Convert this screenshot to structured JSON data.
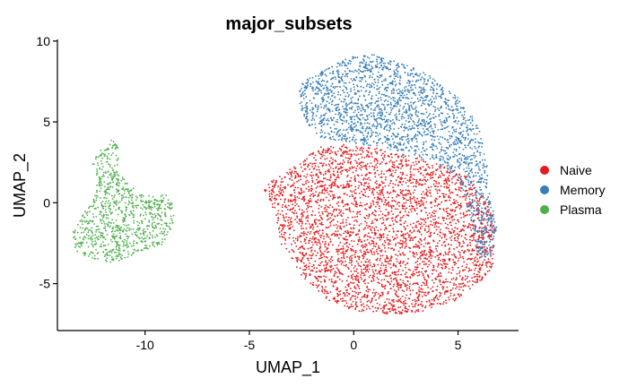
{
  "chart_data": {
    "type": "scatter",
    "title": "major_subsets",
    "xlabel": "UMAP_1",
    "ylabel": "UMAP_2",
    "xlim": [
      -14.2,
      7.9
    ],
    "ylim": [
      -7.9,
      10.1
    ],
    "xticks": [
      -10,
      -5,
      0,
      5
    ],
    "xtick_labels": [
      "-10",
      "-5",
      "0",
      "5"
    ],
    "yticks": [
      -5,
      0,
      5,
      10
    ],
    "ytick_labels": [
      "-5",
      "0",
      "5",
      "10"
    ],
    "grid": false,
    "legend_position": "right",
    "series": [
      {
        "name": "Naive",
        "color": "#E41A1C",
        "region": {
          "outline": [
            [
              -3.8,
              -0.5
            ],
            [
              -4.3,
              0.8
            ],
            [
              -3.9,
              1.5
            ],
            [
              -2.5,
              2.5
            ],
            [
              -1.8,
              3.4
            ],
            [
              -0.5,
              3.6
            ],
            [
              1.0,
              3.4
            ],
            [
              3.0,
              2.8
            ],
            [
              4.5,
              2.2
            ],
            [
              5.5,
              1.6
            ],
            [
              6.5,
              0.0
            ],
            [
              6.8,
              -2.0
            ],
            [
              6.7,
              -4.0
            ],
            [
              6.0,
              -5.0
            ],
            [
              5.0,
              -6.0
            ],
            [
              3.5,
              -6.7
            ],
            [
              2.0,
              -6.9
            ],
            [
              0.5,
              -6.8
            ],
            [
              -1.0,
              -6.3
            ],
            [
              -2.5,
              -4.5
            ],
            [
              -3.5,
              -2.5
            ]
          ]
        }
      },
      {
        "name": "Memory",
        "color": "#377EB8",
        "region": {
          "outline": [
            [
              -2.7,
              7.3
            ],
            [
              -1.3,
              8.3
            ],
            [
              0.0,
              9.1
            ],
            [
              1.0,
              9.2
            ],
            [
              2.0,
              8.8
            ],
            [
              3.5,
              8.0
            ],
            [
              5.0,
              6.5
            ],
            [
              6.0,
              4.8
            ],
            [
              6.3,
              3.0
            ],
            [
              6.5,
              1.5
            ],
            [
              6.6,
              0.0
            ],
            [
              6.9,
              -1.8
            ],
            [
              6.6,
              -3.2
            ],
            [
              6.0,
              -3.5
            ],
            [
              5.6,
              -1.0
            ],
            [
              5.0,
              1.5
            ],
            [
              4.0,
              2.5
            ],
            [
              2.8,
              2.8
            ],
            [
              1.2,
              3.5
            ],
            [
              -0.4,
              3.7
            ],
            [
              -1.6,
              4.0
            ],
            [
              -2.3,
              5.0
            ],
            [
              -2.6,
              6.2
            ]
          ]
        }
      },
      {
        "name": "Plasma",
        "color": "#4DAF4A",
        "region": {
          "outline": [
            [
              -12.2,
              3.3
            ],
            [
              -11.6,
              3.9
            ],
            [
              -11.3,
              3.5
            ],
            [
              -11.2,
              2.3
            ],
            [
              -10.9,
              1.3
            ],
            [
              -10.2,
              0.5
            ],
            [
              -9.0,
              0.5
            ],
            [
              -8.7,
              0.0
            ],
            [
              -8.6,
              -1.0
            ],
            [
              -9.0,
              -2.5
            ],
            [
              -10.0,
              -3.0
            ],
            [
              -11.5,
              -3.7
            ],
            [
              -12.5,
              -3.5
            ],
            [
              -13.3,
              -3.1
            ],
            [
              -13.5,
              -2.0
            ],
            [
              -13.2,
              -1.0
            ],
            [
              -12.7,
              -0.3
            ],
            [
              -12.4,
              0.5
            ],
            [
              -12.3,
              1.6
            ],
            [
              -12.6,
              2.5
            ]
          ]
        }
      }
    ]
  }
}
